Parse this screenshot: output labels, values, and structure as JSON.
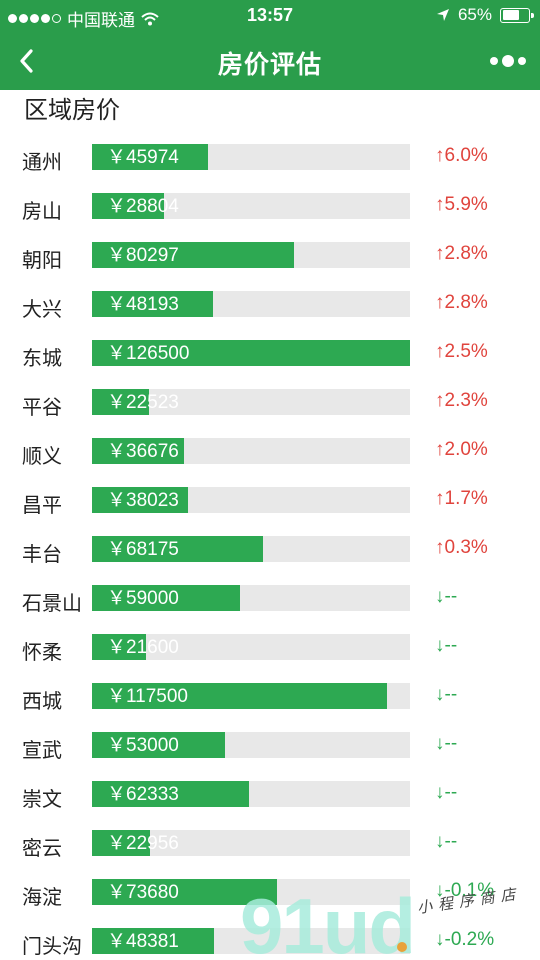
{
  "status_bar": {
    "carrier": "中国联通",
    "time": "13:57",
    "battery_text": "65%",
    "battery_level": 0.65
  },
  "nav": {
    "title": "房价评估"
  },
  "section": {
    "title": "区域房价"
  },
  "max_price": 126500,
  "colors": {
    "nav_bg": "#2a9d4b",
    "bar": "#2da952",
    "track": "#e8e8e8",
    "up": "#e0443d",
    "down": "#2da952"
  },
  "districts": [
    {
      "name": "通州",
      "price": "￥45974",
      "value": 45974,
      "change": "↑6.0%",
      "dir": "up"
    },
    {
      "name": "房山",
      "price": "￥28804",
      "value": 28804,
      "change": "↑5.9%",
      "dir": "up"
    },
    {
      "name": "朝阳",
      "price": "￥80297",
      "value": 80297,
      "change": "↑2.8%",
      "dir": "up"
    },
    {
      "name": "大兴",
      "price": "￥48193",
      "value": 48193,
      "change": "↑2.8%",
      "dir": "up"
    },
    {
      "name": "东城",
      "price": "￥126500",
      "value": 126500,
      "change": "↑2.5%",
      "dir": "up"
    },
    {
      "name": "平谷",
      "price": "￥22523",
      "value": 22523,
      "change": "↑2.3%",
      "dir": "up"
    },
    {
      "name": "顺义",
      "price": "￥36676",
      "value": 36676,
      "change": "↑2.0%",
      "dir": "up"
    },
    {
      "name": "昌平",
      "price": "￥38023",
      "value": 38023,
      "change": "↑1.7%",
      "dir": "up"
    },
    {
      "name": "丰台",
      "price": "￥68175",
      "value": 68175,
      "change": "↑0.3%",
      "dir": "up"
    },
    {
      "name": "石景山",
      "price": "￥59000",
      "value": 59000,
      "change": "↓--",
      "dir": "down"
    },
    {
      "name": "怀柔",
      "price": "￥21600",
      "value": 21600,
      "change": "↓--",
      "dir": "down"
    },
    {
      "name": "西城",
      "price": "￥117500",
      "value": 117500,
      "change": "↓--",
      "dir": "down"
    },
    {
      "name": "宣武",
      "price": "￥53000",
      "value": 53000,
      "change": "↓--",
      "dir": "down"
    },
    {
      "name": "崇文",
      "price": "￥62333",
      "value": 62333,
      "change": "↓--",
      "dir": "down"
    },
    {
      "name": "密云",
      "price": "￥22956",
      "value": 22956,
      "change": "↓--",
      "dir": "down"
    },
    {
      "name": "海淀",
      "price": "￥73680",
      "value": 73680,
      "change": "↓-0.1%",
      "dir": "down"
    },
    {
      "name": "门头沟",
      "price": "￥48381",
      "value": 48381,
      "change": "↓-0.2%",
      "dir": "down"
    }
  ],
  "watermark": {
    "logo": "91ud",
    "subtitle": "小程序商店"
  }
}
